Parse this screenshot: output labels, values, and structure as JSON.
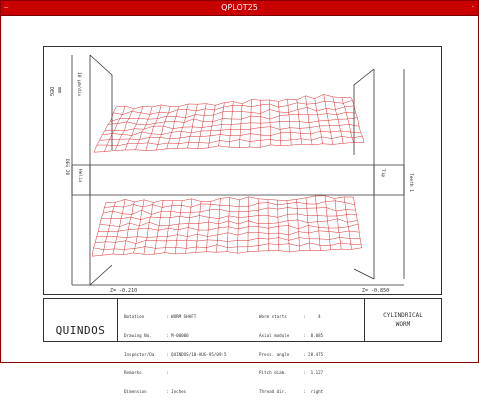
{
  "window": {
    "title": "QPLOT25",
    "menu_icon": "minus-icon",
    "close_icon": "close-icon"
  },
  "plot": {
    "top_left_labels": [
      "DEG",
      "mm"
    ],
    "top_left_scale": "10 µm/div",
    "left_side_label": "DEG 20",
    "right_side_label": "Teeth 1",
    "bottom_left_label": "Z= -0.210",
    "bottom_right_label": "Z= -0.850",
    "center_left_label": "Helix",
    "center_right_label": "Tip",
    "colors": {
      "mesh": "#d01818",
      "frame": "#333333"
    }
  },
  "info": {
    "logo": "QUINDOS",
    "left": [
      {
        "k": "Notation",
        "v": ": WORM SHAFT"
      },
      {
        "k": "Drawing No.",
        "v": ": M-00000"
      },
      {
        "k": "Inspector/Da",
        "v": ": QUINDOS/10-AUG-95/09:5"
      },
      {
        "k": "Remarks",
        "v": ":"
      },
      {
        "k": "Dimension",
        "v": ": Inches"
      }
    ],
    "right": [
      {
        "k": "Worm starts",
        "v": ":     4"
      },
      {
        "k": "Axial module",
        "v": ":  0.085"
      },
      {
        "k": "Press. angle",
        "v": ": 20.475"
      },
      {
        "k": "Pitch diam.",
        "v": ":  1.127"
      },
      {
        "k": "Thread dir.",
        "v": ":  right"
      }
    ],
    "type_line1": "CYLINDRICAL",
    "type_line2": "WORM"
  }
}
